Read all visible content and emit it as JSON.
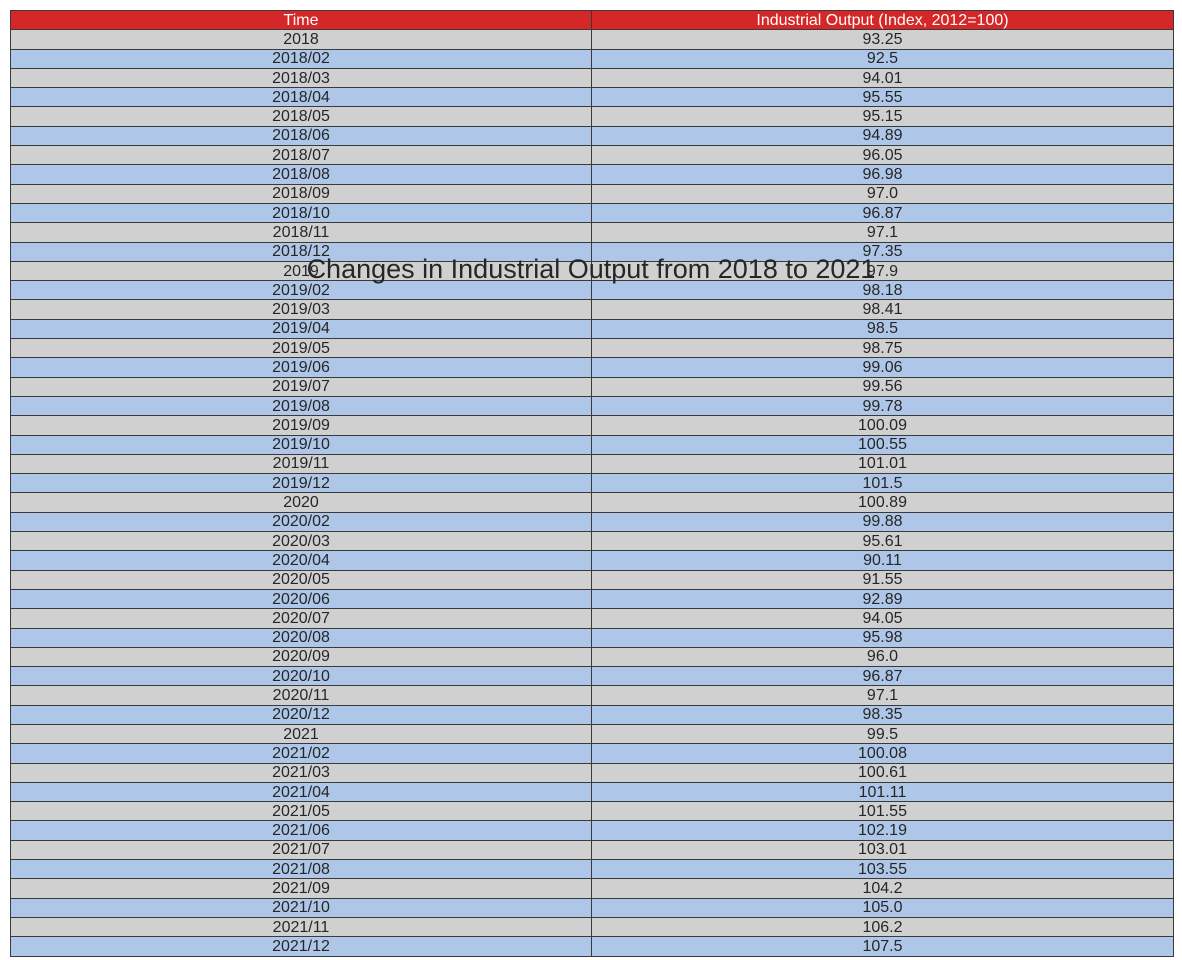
{
  "chart_data": {
    "type": "table",
    "title": "Changes in Industrial Output from 2018 to 2021",
    "columns": [
      "Time",
      "Industrial Output (Index, 2012=100)"
    ],
    "header_color": "#d62728",
    "row_colors": [
      "#d0d0d0",
      "#aec7e8"
    ],
    "rows": [
      [
        "2018",
        "93.25"
      ],
      [
        "2018/02",
        "92.5"
      ],
      [
        "2018/03",
        "94.01"
      ],
      [
        "2018/04",
        "95.55"
      ],
      [
        "2018/05",
        "95.15"
      ],
      [
        "2018/06",
        "94.89"
      ],
      [
        "2018/07",
        "96.05"
      ],
      [
        "2018/08",
        "96.98"
      ],
      [
        "2018/09",
        "97.0"
      ],
      [
        "2018/10",
        "96.87"
      ],
      [
        "2018/11",
        "97.1"
      ],
      [
        "2018/12",
        "97.35"
      ],
      [
        "2019",
        "97.9"
      ],
      [
        "2019/02",
        "98.18"
      ],
      [
        "2019/03",
        "98.41"
      ],
      [
        "2019/04",
        "98.5"
      ],
      [
        "2019/05",
        "98.75"
      ],
      [
        "2019/06",
        "99.06"
      ],
      [
        "2019/07",
        "99.56"
      ],
      [
        "2019/08",
        "99.78"
      ],
      [
        "2019/09",
        "100.09"
      ],
      [
        "2019/10",
        "100.55"
      ],
      [
        "2019/11",
        "101.01"
      ],
      [
        "2019/12",
        "101.5"
      ],
      [
        "2020",
        "100.89"
      ],
      [
        "2020/02",
        "99.88"
      ],
      [
        "2020/03",
        "95.61"
      ],
      [
        "2020/04",
        "90.11"
      ],
      [
        "2020/05",
        "91.55"
      ],
      [
        "2020/06",
        "92.89"
      ],
      [
        "2020/07",
        "94.05"
      ],
      [
        "2020/08",
        "95.98"
      ],
      [
        "2020/09",
        "96.0"
      ],
      [
        "2020/10",
        "96.87"
      ],
      [
        "2020/11",
        "97.1"
      ],
      [
        "2020/12",
        "98.35"
      ],
      [
        "2021",
        "99.5"
      ],
      [
        "2021/02",
        "100.08"
      ],
      [
        "2021/03",
        "100.61"
      ],
      [
        "2021/04",
        "101.11"
      ],
      [
        "2021/05",
        "101.55"
      ],
      [
        "2021/06",
        "102.19"
      ],
      [
        "2021/07",
        "103.01"
      ],
      [
        "2021/08",
        "103.55"
      ],
      [
        "2021/09",
        "104.2"
      ],
      [
        "2021/10",
        "105.0"
      ],
      [
        "2021/11",
        "106.2"
      ],
      [
        "2021/12",
        "107.5"
      ]
    ]
  }
}
